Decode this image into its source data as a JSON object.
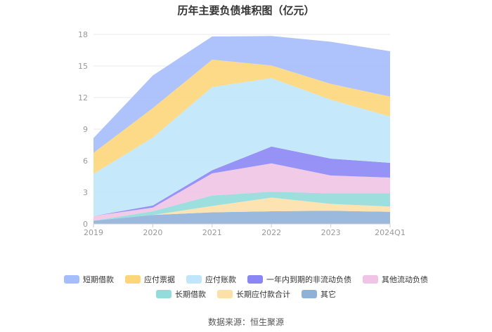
{
  "chart_data": {
    "type": "area",
    "stacked": true,
    "title": "历年主要负债堆积图（亿元）",
    "categories": [
      "2019",
      "2020",
      "2021",
      "2022",
      "2023",
      "2024Q1"
    ],
    "y_ticks": [
      "0",
      "3",
      "6",
      "9",
      "12",
      "15",
      "18"
    ],
    "ylim": [
      0,
      18
    ],
    "grid": true,
    "legend_position": "bottom",
    "series": [
      {
        "name": "其它",
        "color": "#8fb1d8",
        "values": [
          0.3,
          0.85,
          1.1,
          1.2,
          1.25,
          1.15
        ]
      },
      {
        "name": "长期应付款合计",
        "color": "#fce0a8",
        "values": [
          0.0,
          0.0,
          0.6,
          1.3,
          0.65,
          0.5
        ]
      },
      {
        "name": "长期借款",
        "color": "#92dcdc",
        "values": [
          0.0,
          0.35,
          1.0,
          0.55,
          1.0,
          1.25
        ]
      },
      {
        "name": "其他流动负债",
        "color": "#f0c4e4",
        "values": [
          0.45,
          0.35,
          2.1,
          2.7,
          1.7,
          1.5
        ]
      },
      {
        "name": "一年内到期的非流动负债",
        "color": "#8b86f5",
        "values": [
          0.0,
          0.2,
          0.3,
          1.6,
          1.6,
          1.4
        ]
      },
      {
        "name": "应付账款",
        "color": "#bfe6fa",
        "values": [
          4.0,
          6.45,
          7.9,
          6.5,
          5.6,
          4.4
        ]
      },
      {
        "name": "应付票据",
        "color": "#fdd67a",
        "values": [
          2.0,
          2.8,
          2.6,
          1.2,
          1.5,
          1.9
        ]
      },
      {
        "name": "短期借款",
        "color": "#a5bdfb",
        "values": [
          1.4,
          3.1,
          2.2,
          2.8,
          4.0,
          4.3
        ]
      }
    ],
    "legend_rows": [
      [
        "短期借款",
        "应付票据",
        "应付账款",
        "一年内到期的非流动负债",
        "其他流动负债"
      ],
      [
        "长期借款",
        "长期应付款合计",
        "其它"
      ]
    ]
  },
  "source": "数据来源：恒生聚源"
}
